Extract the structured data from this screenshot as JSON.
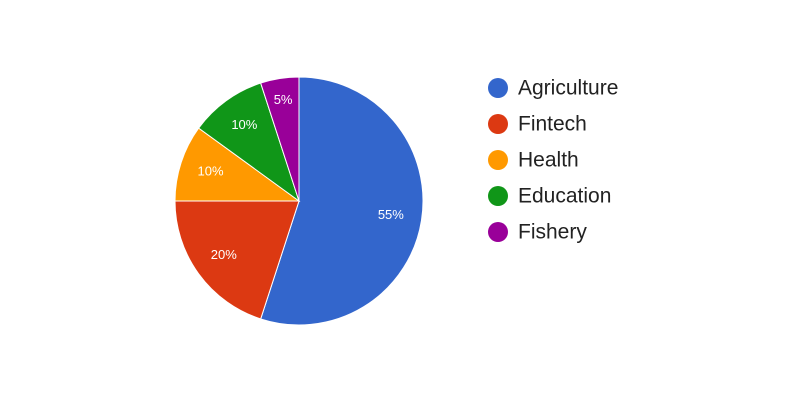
{
  "chart_data": {
    "type": "pie",
    "categories": [
      "Agriculture",
      "Fintech",
      "Health",
      "Education",
      "Fishery"
    ],
    "values": [
      55,
      20,
      10,
      10,
      5
    ],
    "value_labels": [
      "55%",
      "20%",
      "10%",
      "10%",
      "5%"
    ],
    "colors": [
      "#3366cc",
      "#dc3912",
      "#ff9900",
      "#109618",
      "#990099"
    ],
    "legend": "right"
  }
}
